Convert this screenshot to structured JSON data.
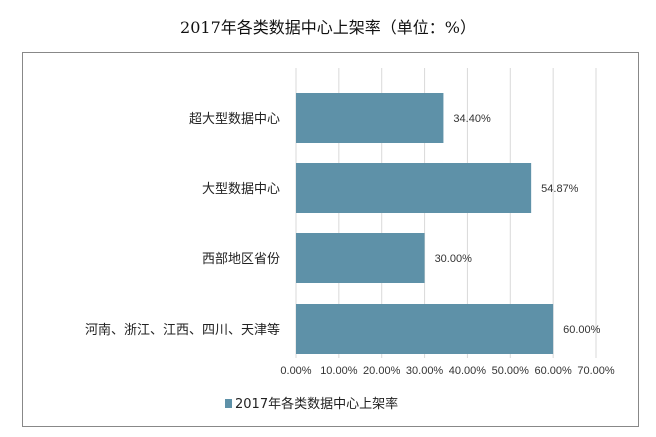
{
  "chart_data": {
    "type": "bar",
    "orientation": "horizontal",
    "title": "2017年各类数据中心上架率（单位：%）",
    "categories": [
      "超大型数据中心",
      "大型数据中心",
      "西部地区省份",
      "河南、浙江、江西、四川、天津等"
    ],
    "series": [
      {
        "name": "2017年各类数据中心上架率",
        "values": [
          34.4,
          54.87,
          30.0,
          60.0
        ],
        "labels": [
          "34.40%",
          "54.87%",
          "30.00%",
          "60.00%"
        ]
      }
    ],
    "xlim": [
      0,
      70
    ],
    "xticks": [
      "0.00%",
      "10.00%",
      "20.00%",
      "30.00%",
      "40.00%",
      "50.00%",
      "60.00%",
      "70.00%"
    ],
    "grid": "vertical",
    "legend": "bottom",
    "bar_color": "#5e91a8"
  }
}
